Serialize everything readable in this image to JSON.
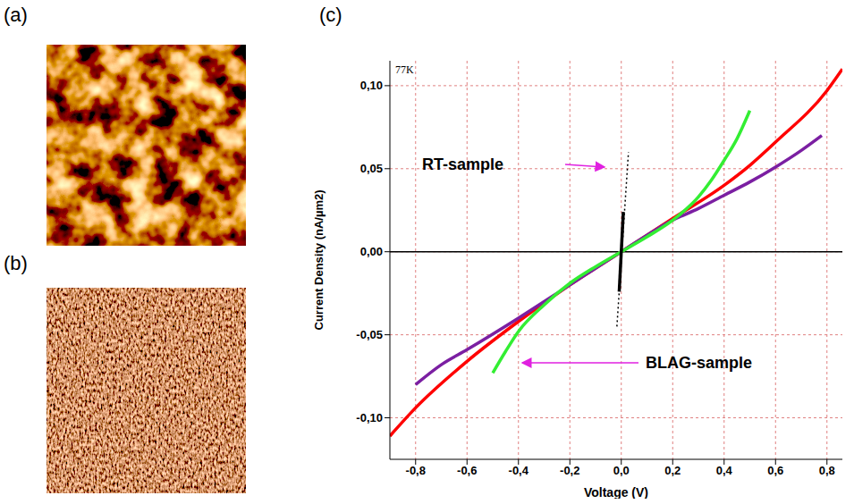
{
  "panel_labels": [
    "(a)",
    "(b)",
    "(c)"
  ],
  "chart_data": {
    "type": "line",
    "annotations": [
      "77K",
      "RT-sample",
      "BLAG-sample"
    ],
    "x_label": "Voltage (V)",
    "y_label": "Current Density (nA/µm2)",
    "xlim": [
      -0.9,
      0.86
    ],
    "ylim": [
      -0.125,
      0.115
    ],
    "xticks": [
      {
        "value": -0.8,
        "label": "-0,8"
      },
      {
        "value": -0.6,
        "label": "-0,6"
      },
      {
        "value": -0.4,
        "label": "-0,4"
      },
      {
        "value": -0.2,
        "label": "-0,2"
      },
      {
        "value": 0,
        "label": "0,0"
      },
      {
        "value": 0.2,
        "label": "0,2"
      },
      {
        "value": 0.4,
        "label": "0,4"
      },
      {
        "value": 0.6,
        "label": "0,6"
      },
      {
        "value": 0.8,
        "label": "0,8"
      }
    ],
    "yticks": [
      {
        "value": -0.1,
        "label": "-0,10"
      },
      {
        "value": -0.05,
        "label": "-0,05"
      },
      {
        "value": 0,
        "label": "0,00"
      },
      {
        "value": 0.05,
        "label": "0,05"
      },
      {
        "value": 0.1,
        "label": "0,10"
      }
    ],
    "grid": true,
    "series": [
      {
        "color": "#ff0000",
        "line_style": "solid",
        "x": [
          -0.9,
          -0.8,
          -0.6,
          -0.4,
          -0.2,
          0,
          0.2,
          0.4,
          0.5,
          0.6,
          0.8,
          0.86
        ],
        "values": [
          -0.111,
          -0.094,
          -0.066,
          -0.042,
          -0.02,
          0,
          0.02,
          0.04,
          0.052,
          0.066,
          0.097,
          0.11
        ]
      },
      {
        "color": "#7b1fa2",
        "line_style": "solid",
        "x": [
          -0.8,
          -0.7,
          -0.6,
          -0.4,
          -0.2,
          0,
          0.2,
          0.3,
          0.4,
          0.5,
          0.6,
          0.7,
          0.78
        ],
        "values": [
          -0.08,
          -0.068,
          -0.059,
          -0.04,
          -0.02,
          0,
          0.019,
          0.026,
          0.034,
          0.042,
          0.051,
          0.061,
          0.07
        ]
      },
      {
        "color": "#33ee33",
        "line_style": "solid",
        "x": [
          -0.5,
          -0.45,
          -0.4,
          -0.3,
          -0.2,
          -0.1,
          0,
          0.1,
          0.2,
          0.3,
          0.35,
          0.4,
          0.45,
          0.5
        ],
        "values": [
          -0.073,
          -0.06,
          -0.048,
          -0.032,
          -0.019,
          -0.009,
          0,
          0.009,
          0.019,
          0.033,
          0.043,
          0.055,
          0.068,
          0.085
        ]
      },
      {
        "color": "#000000",
        "line_style": "dotted",
        "x": [
          -0.017,
          0.028
        ],
        "values": [
          -0.045,
          0.06
        ]
      },
      {
        "color": "#000000",
        "line_style": "solid",
        "x": [
          -0.008,
          0.008
        ],
        "values": [
          -0.024,
          0.024
        ]
      }
    ]
  }
}
